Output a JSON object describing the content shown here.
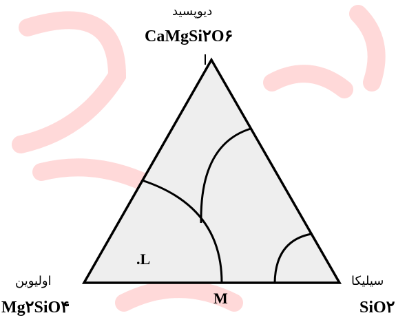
{
  "diagram": {
    "vertices": {
      "top": {
        "name_fa": "دیوپسید",
        "formula": "CaMgSi۲O۶"
      },
      "left": {
        "name_fa": "اولیوین",
        "formula": "Mg۲SiO۴"
      },
      "right": {
        "name_fa": "سیلیکا",
        "formula": "SiO۲"
      }
    },
    "points": {
      "L": ".L",
      "M": "M"
    },
    "watermark": "علمی دانشگاهی",
    "colors": {
      "fill": "#eeeeee",
      "stroke": "#000000",
      "watermark": "#ffdcdc"
    }
  }
}
